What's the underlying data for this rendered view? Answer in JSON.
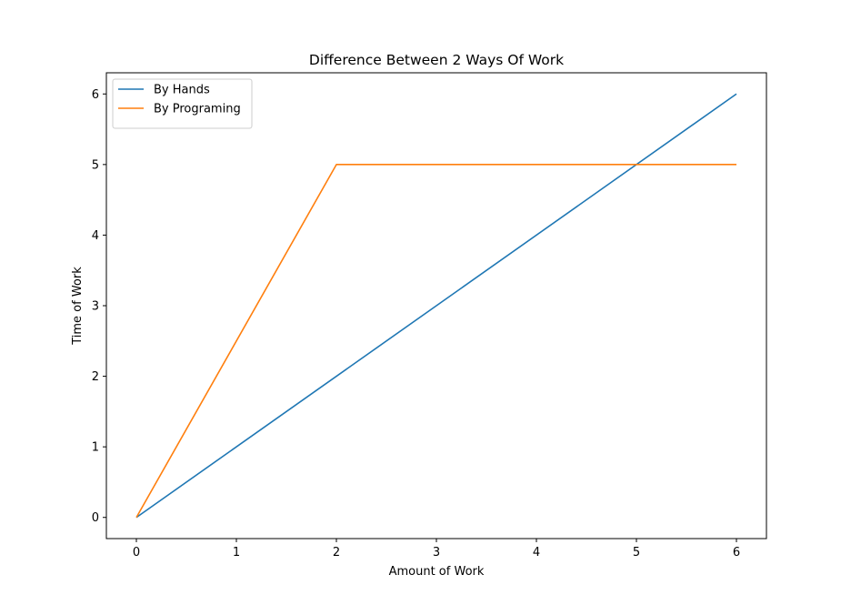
{
  "chart_data": {
    "type": "line",
    "title": "Difference Between 2 Ways Of Work",
    "xlabel": "Amount of Work",
    "ylabel": "Time of Work",
    "xlim": [
      -0.3,
      6.3
    ],
    "ylim": [
      -0.3,
      6.3
    ],
    "xticks": [
      0,
      1,
      2,
      3,
      4,
      5,
      6
    ],
    "yticks": [
      0,
      1,
      2,
      3,
      4,
      5,
      6
    ],
    "grid": false,
    "legend_position": "upper-left",
    "series": [
      {
        "name": "By Hands",
        "color": "#1f77b4",
        "x": [
          0,
          6
        ],
        "y": [
          0,
          6
        ]
      },
      {
        "name": "By Programing",
        "color": "#ff7f0e",
        "x": [
          0,
          2,
          6
        ],
        "y": [
          0,
          5,
          5
        ]
      }
    ]
  }
}
